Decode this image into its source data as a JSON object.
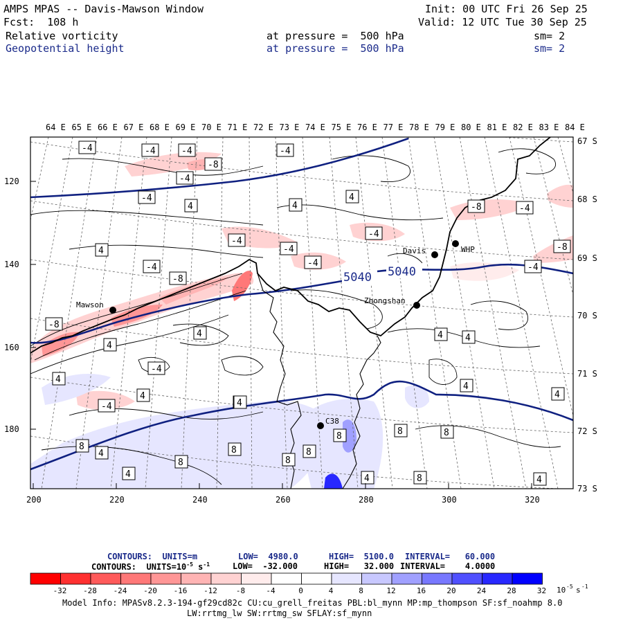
{
  "header": {
    "title": "AMPS MPAS -- Davis-Mawson Window",
    "init": "Init: 00 UTC Fri 26 Sep 25",
    "forecast": "Fcst:  108 h",
    "valid": "Valid: 12 UTC Tue 30 Sep 25",
    "field1": {
      "name": "Relative vorticity",
      "level": "at pressure =  500 hPa",
      "sm": "sm= 2"
    },
    "field2": {
      "name": "Geopotential height",
      "level": "at pressure =  500 hPa",
      "sm": "sm= 2"
    }
  },
  "axes": {
    "top_labels": [
      "64 E",
      "65 E",
      "66 E",
      "67 E",
      "68 E",
      "69 E",
      "70 E",
      "71 E",
      "72 E",
      "73 E",
      "74 E",
      "75 E",
      "76 E",
      "77 E",
      "78 E",
      "79 E",
      "80 E",
      "81 E",
      "82 E",
      "83 E",
      "84 E"
    ],
    "right_labels": [
      "67 S",
      "68 S",
      "69 S",
      "70 S",
      "71 S",
      "72 S",
      "73 S"
    ],
    "left_ticks": [
      "120",
      "140",
      "160",
      "180"
    ],
    "bottom_ticks": [
      "200",
      "220",
      "240",
      "260",
      "280",
      "300",
      "320"
    ]
  },
  "stations": [
    {
      "name": "Mawson"
    },
    {
      "name": "Davis"
    },
    {
      "name": "WHP"
    },
    {
      "name": "Zhongshan"
    },
    {
      "name": "C38"
    }
  ],
  "height_labels": [
    "5040",
    "5040"
  ],
  "vort_labels": [
    "-4",
    "-4",
    "-4",
    "-8",
    "-4",
    "-4",
    "-4",
    "-4",
    "-4",
    "-8",
    "-4",
    "-4",
    "-8",
    "-4",
    "-4",
    "-8",
    "-8",
    "-4",
    "-4",
    "-4",
    "4",
    "4",
    "4",
    "4",
    "4",
    "4",
    "4",
    "4",
    "4",
    "4",
    "4",
    "4",
    "4",
    "8",
    "8",
    "8",
    "8",
    "8",
    "8",
    "8",
    "8",
    "8",
    "4",
    "4",
    "4",
    "4",
    "4"
  ],
  "contours_info": {
    "line1": {
      "label": "CONTOURS:  UNITS=m",
      "low": "LOW=  4980.0",
      "high": "HIGH=  5100.0",
      "interval": "INTERVAL=   60.000"
    },
    "line2": {
      "label": "CONTOURS:  UNITS=10",
      "unit_exp": "-5",
      "unit_suffix": " s",
      "unit_exp2": "-1",
      "low": "LOW=  -32.000",
      "high": "HIGH=   32.000",
      "interval": "INTERVAL=    4.0000"
    }
  },
  "colorbar": {
    "labels": [
      "-32",
      "-28",
      "-24",
      "-20",
      "-16",
      "-12",
      "-8",
      "-4",
      "0",
      "4",
      "8",
      "12",
      "16",
      "20",
      "24",
      "28",
      "32"
    ],
    "unit": "10",
    "unit_exp": "-5",
    "unit_s": "s",
    "unit_exp2": "-1",
    "colors": [
      "#ff0000",
      "#ff3030",
      "#ff5a5a",
      "#ff7878",
      "#ff9696",
      "#ffb4b4",
      "#ffd2d2",
      "#ffecec",
      "#ffffff",
      "#ffffff",
      "#e6e6ff",
      "#c8c8ff",
      "#a0a0ff",
      "#7878ff",
      "#5050ff",
      "#2828ff",
      "#0000ff"
    ]
  },
  "footer": {
    "line1": "Model Info: MPASv8.2.3-194-gf29cd82c CU:cu_grell_freitas PBL:bl_mynn MP:mp_thompson SF:sf_noahmp 8.0",
    "line2": "LW:rrtmg_lw SW:rrtmg_sw SFLAY:sf_mynn"
  }
}
